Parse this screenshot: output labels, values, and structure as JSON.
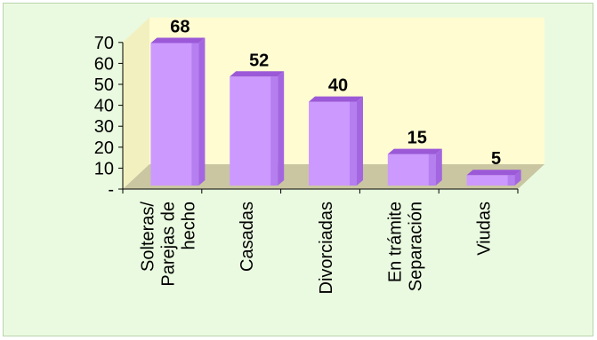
{
  "chart_data": {
    "type": "bar",
    "categories": [
      [
        "Solteras/",
        "Parejas de",
        "hecho"
      ],
      [
        "Casadas"
      ],
      [
        "Divorciadas"
      ],
      [
        "En trámite",
        "Separación"
      ],
      [
        "Viudas"
      ]
    ],
    "values": [
      68,
      52,
      40,
      15,
      5
    ],
    "data_labels": [
      "68",
      "52",
      "40",
      "15",
      "5"
    ],
    "y_ticks": [
      "-",
      "10",
      "20",
      "30",
      "40",
      "50",
      "60",
      "70"
    ],
    "ylim": [
      0,
      70
    ],
    "grid": false,
    "legend": "none",
    "colors": {
      "bar_front": "#cc99ff",
      "bar_side": "#a366e0",
      "bar_top": "#9b59d8",
      "back_wall": "#fffcd2",
      "floor": "#c9c6a1",
      "background": "#eafae0"
    }
  }
}
